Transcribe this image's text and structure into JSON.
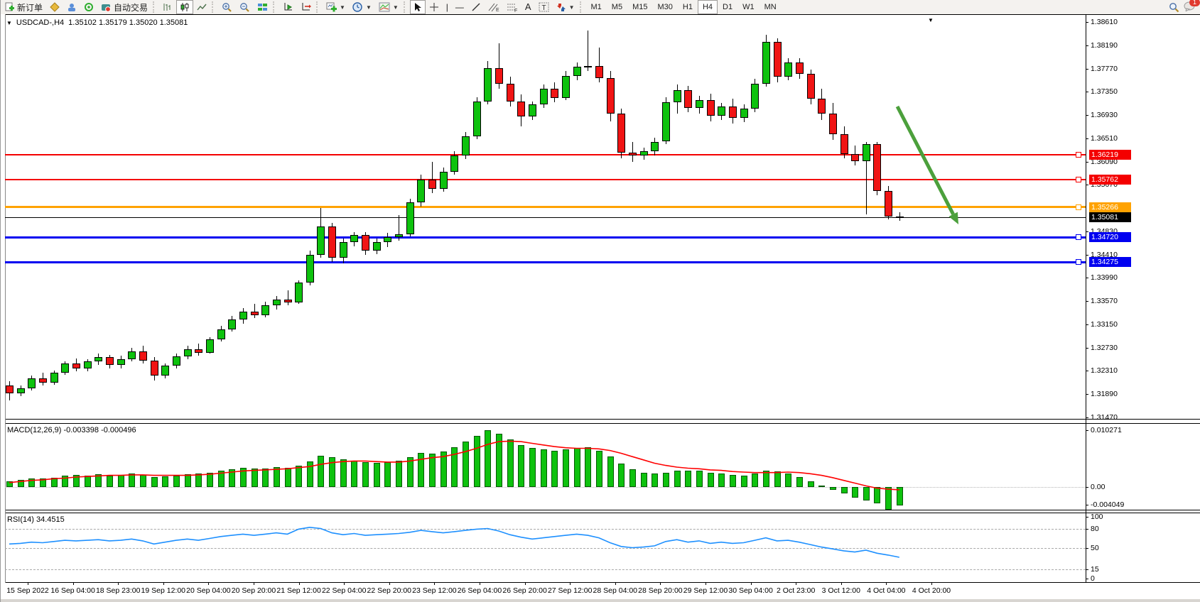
{
  "toolbar": {
    "new_order": "新订单",
    "auto_trading": "自动交易",
    "timeframes": [
      "M1",
      "M5",
      "M15",
      "M30",
      "H1",
      "H4",
      "D1",
      "W1",
      "MN"
    ],
    "active_timeframe": "H4",
    "notification_badge": "1"
  },
  "chart": {
    "title_symbol": "USDCAD-,H4",
    "title_ohlc": "1.35102 1.35179 1.35020 1.35081"
  },
  "chart_data": {
    "type": "candlestick",
    "symbol": "USDCAD",
    "timeframe": "H4",
    "open": 1.35102,
    "high": 1.35179,
    "low": 1.3502,
    "close": 1.35081,
    "price_axis_ticks": [
      "1.38610",
      "1.38190",
      "1.37770",
      "1.37350",
      "1.36930",
      "1.36510",
      "1.36090",
      "1.35670",
      "1.34830",
      "1.34410",
      "1.33990",
      "1.33570",
      "1.33150",
      "1.32730",
      "1.32310",
      "1.31890",
      "1.31470"
    ],
    "current_price": 1.35081,
    "current_price_color": "#000000",
    "levels": [
      {
        "price": 1.36219,
        "color": "#f40000",
        "thickness": 2
      },
      {
        "price": 1.35762,
        "color": "#f40000",
        "thickness": 2
      },
      {
        "price": 1.35266,
        "color": "#ffa200",
        "thickness": 3
      },
      {
        "price": 1.3472,
        "color": "#0000f0",
        "thickness": 3
      },
      {
        "price": 1.34275,
        "color": "#0000f0",
        "thickness": 3
      }
    ],
    "bull_color": "#0ec20e",
    "bear_color": "#f01414",
    "x_labels": [
      "15 Sep 2022",
      "16 Sep 04:00",
      "18 Sep 23:00",
      "19 Sep 12:00",
      "20 Sep 04:00",
      "20 Sep 20:00",
      "21 Sep 12:00",
      "22 Sep 04:00",
      "22 Sep 20:00",
      "23 Sep 12:00",
      "26 Sep 04:00",
      "26 Sep 20:00",
      "27 Sep 12:00",
      "28 Sep 04:00",
      "28 Sep 20:00",
      "29 Sep 12:00",
      "30 Sep 04:00",
      "2 Oct 23:00",
      "3 Oct 12:00",
      "4 Oct 04:00",
      "4 Oct 20:00"
    ],
    "candles": [
      [
        1.3205,
        1.3212,
        1.3178,
        1.319
      ],
      [
        1.319,
        1.3205,
        1.3185,
        1.32
      ],
      [
        1.32,
        1.3222,
        1.3196,
        1.3218
      ],
      [
        1.3218,
        1.3228,
        1.3205,
        1.321
      ],
      [
        1.321,
        1.3232,
        1.3206,
        1.3228
      ],
      [
        1.3228,
        1.3248,
        1.3224,
        1.3244
      ],
      [
        1.3244,
        1.3254,
        1.323,
        1.3236
      ],
      [
        1.3236,
        1.3252,
        1.323,
        1.3248
      ],
      [
        1.3248,
        1.3262,
        1.3242,
        1.3256
      ],
      [
        1.3256,
        1.326,
        1.3236,
        1.3242
      ],
      [
        1.3242,
        1.3258,
        1.3236,
        1.3252
      ],
      [
        1.3252,
        1.3272,
        1.3248,
        1.3266
      ],
      [
        1.3266,
        1.3276,
        1.3244,
        1.325
      ],
      [
        1.325,
        1.3256,
        1.3214,
        1.3222
      ],
      [
        1.3222,
        1.3244,
        1.3218,
        1.324
      ],
      [
        1.324,
        1.3262,
        1.3236,
        1.3257
      ],
      [
        1.3257,
        1.3276,
        1.3252,
        1.327
      ],
      [
        1.327,
        1.328,
        1.3258,
        1.3264
      ],
      [
        1.3264,
        1.3292,
        1.3262,
        1.3288
      ],
      [
        1.3288,
        1.3312,
        1.3284,
        1.3306
      ],
      [
        1.3306,
        1.333,
        1.3302,
        1.3324
      ],
      [
        1.3324,
        1.3344,
        1.3316,
        1.3338
      ],
      [
        1.3338,
        1.3352,
        1.3326,
        1.3332
      ],
      [
        1.3332,
        1.3356,
        1.3328,
        1.335
      ],
      [
        1.335,
        1.3366,
        1.3342,
        1.336
      ],
      [
        1.336,
        1.3376,
        1.335,
        1.3355
      ],
      [
        1.3355,
        1.3395,
        1.3352,
        1.339
      ],
      [
        1.339,
        1.3448,
        1.3385,
        1.344
      ],
      [
        1.344,
        1.3525,
        1.3436,
        1.3492
      ],
      [
        1.3492,
        1.3498,
        1.3428,
        1.3436
      ],
      [
        1.3436,
        1.347,
        1.3425,
        1.3464
      ],
      [
        1.3464,
        1.3482,
        1.3456,
        1.3476
      ],
      [
        1.3476,
        1.3482,
        1.344,
        1.3448
      ],
      [
        1.3448,
        1.347,
        1.3442,
        1.3463
      ],
      [
        1.3463,
        1.348,
        1.3454,
        1.3472
      ],
      [
        1.3472,
        1.3512,
        1.3466,
        1.3478
      ],
      [
        1.3478,
        1.3542,
        1.3474,
        1.3535
      ],
      [
        1.3535,
        1.3585,
        1.3528,
        1.3576
      ],
      [
        1.3576,
        1.3608,
        1.3552,
        1.356
      ],
      [
        1.356,
        1.3598,
        1.3554,
        1.359
      ],
      [
        1.359,
        1.3628,
        1.3585,
        1.362
      ],
      [
        1.362,
        1.3662,
        1.3614,
        1.3655
      ],
      [
        1.3655,
        1.3725,
        1.365,
        1.3718
      ],
      [
        1.3718,
        1.379,
        1.3712,
        1.3778
      ],
      [
        1.3778,
        1.3822,
        1.374,
        1.375
      ],
      [
        1.375,
        1.3762,
        1.3708,
        1.3718
      ],
      [
        1.3718,
        1.373,
        1.3672,
        1.369
      ],
      [
        1.369,
        1.3718,
        1.3684,
        1.3712
      ],
      [
        1.3712,
        1.3748,
        1.3706,
        1.374
      ],
      [
        1.374,
        1.3752,
        1.3716,
        1.3724
      ],
      [
        1.3724,
        1.3772,
        1.372,
        1.3764
      ],
      [
        1.3764,
        1.3788,
        1.3756,
        1.378
      ],
      [
        1.378,
        1.3845,
        1.3772,
        1.3782
      ],
      [
        1.3782,
        1.3815,
        1.3752,
        1.376
      ],
      [
        1.376,
        1.3772,
        1.3682,
        1.3695
      ],
      [
        1.3695,
        1.3705,
        1.3615,
        1.3625
      ],
      [
        1.3625,
        1.3645,
        1.3608,
        1.362
      ],
      [
        1.362,
        1.3634,
        1.3612,
        1.3628
      ],
      [
        1.3628,
        1.3652,
        1.362,
        1.3645
      ],
      [
        1.3645,
        1.3725,
        1.364,
        1.3716
      ],
      [
        1.3716,
        1.3748,
        1.3695,
        1.3738
      ],
      [
        1.3738,
        1.3745,
        1.3698,
        1.3706
      ],
      [
        1.3706,
        1.3728,
        1.3695,
        1.372
      ],
      [
        1.372,
        1.3732,
        1.3682,
        1.3692
      ],
      [
        1.3692,
        1.3715,
        1.3684,
        1.3708
      ],
      [
        1.3708,
        1.3722,
        1.3678,
        1.3688
      ],
      [
        1.3688,
        1.3712,
        1.368,
        1.3704
      ],
      [
        1.3704,
        1.3758,
        1.3698,
        1.375
      ],
      [
        1.375,
        1.3838,
        1.3744,
        1.3825
      ],
      [
        1.3825,
        1.3832,
        1.3752,
        1.3762
      ],
      [
        1.3762,
        1.3795,
        1.3756,
        1.3788
      ],
      [
        1.3788,
        1.3795,
        1.3758,
        1.3768
      ],
      [
        1.3768,
        1.3775,
        1.3712,
        1.3722
      ],
      [
        1.3722,
        1.374,
        1.3684,
        1.3695
      ],
      [
        1.3695,
        1.3715,
        1.3648,
        1.3658
      ],
      [
        1.3658,
        1.3672,
        1.3615,
        1.3622
      ],
      [
        1.3622,
        1.3638,
        1.3602,
        1.361
      ],
      [
        1.361,
        1.3645,
        1.3513,
        1.364
      ],
      [
        1.364,
        1.3645,
        1.3548,
        1.3556
      ],
      [
        1.3556,
        1.3565,
        1.3505,
        1.351
      ],
      [
        1.35102,
        1.35179,
        1.3502,
        1.35081
      ]
    ],
    "indicators": {
      "macd": {
        "label": "MACD(12,26,9) -0.003398 -0.000496",
        "params": "12,26,9",
        "macd_value": -0.003398,
        "signal_value": -0.000496,
        "axis": [
          "0.010271",
          "0.00",
          "-0.004049"
        ],
        "histogram_color": "#0ec20e",
        "signal_color": "#ff0000",
        "histogram": [
          0.001,
          0.0013,
          0.0016,
          0.0015,
          0.0017,
          0.002,
          0.0022,
          0.0021,
          0.0023,
          0.0021,
          0.0022,
          0.0024,
          0.0022,
          0.0018,
          0.0019,
          0.0021,
          0.0023,
          0.0024,
          0.0026,
          0.0029,
          0.0032,
          0.0035,
          0.0033,
          0.0034,
          0.0036,
          0.0035,
          0.0038,
          0.0046,
          0.0056,
          0.0054,
          0.005,
          0.0048,
          0.0045,
          0.0044,
          0.0045,
          0.0047,
          0.0054,
          0.0062,
          0.006,
          0.0064,
          0.0072,
          0.0082,
          0.0092,
          0.0103,
          0.0096,
          0.0086,
          0.0076,
          0.007,
          0.0068,
          0.0066,
          0.0068,
          0.007,
          0.0072,
          0.0066,
          0.0055,
          0.0042,
          0.0032,
          0.0026,
          0.0024,
          0.0026,
          0.003,
          0.003,
          0.0029,
          0.0026,
          0.0024,
          0.0022,
          0.0021,
          0.0024,
          0.003,
          0.0028,
          0.0024,
          0.0018,
          0.001,
          0.0002,
          -0.0005,
          -0.0012,
          -0.0019,
          -0.0024,
          -0.003,
          -0.004049,
          -0.003398
        ],
        "signal": [
          0.0008,
          0.001,
          0.0012,
          0.0013,
          0.0015,
          0.0016,
          0.0018,
          0.0019,
          0.002,
          0.0021,
          0.0021,
          0.0022,
          0.0022,
          0.0021,
          0.0021,
          0.0021,
          0.0021,
          0.0022,
          0.0023,
          0.0025,
          0.0027,
          0.0029,
          0.003,
          0.0031,
          0.0032,
          0.0033,
          0.0035,
          0.0037,
          0.0041,
          0.0044,
          0.0046,
          0.0047,
          0.0047,
          0.0046,
          0.0045,
          0.0045,
          0.0047,
          0.005,
          0.0053,
          0.0055,
          0.0059,
          0.0064,
          0.007,
          0.0077,
          0.0082,
          0.0083,
          0.0082,
          0.0079,
          0.0076,
          0.0073,
          0.0071,
          0.007,
          0.007,
          0.0069,
          0.0066,
          0.0061,
          0.0055,
          0.0049,
          0.0043,
          0.0039,
          0.0036,
          0.0034,
          0.0033,
          0.0031,
          0.003,
          0.0028,
          0.0027,
          0.0026,
          0.0026,
          0.0026,
          0.0027,
          0.0026,
          0.0024,
          0.0021,
          0.0017,
          0.0012,
          0.0007,
          0.0002,
          -0.0002,
          -0.0004,
          -0.000496
        ]
      },
      "rsi": {
        "label": "RSI(14) 34.4515",
        "period": 14,
        "value": 34.4515,
        "line_color": "#1e90ff",
        "axis": [
          "100",
          "80",
          "50",
          "15",
          "0"
        ],
        "levels": [
          80,
          50,
          15
        ],
        "values": [
          56,
          57,
          59,
          58,
          60,
          62,
          61,
          62,
          63,
          61,
          62,
          64,
          61,
          56,
          59,
          62,
          64,
          62,
          65,
          68,
          70,
          72,
          70,
          72,
          74,
          72,
          80,
          83,
          81,
          74,
          71,
          73,
          70,
          71,
          72,
          73,
          75,
          78,
          76,
          74,
          76,
          78,
          80,
          81,
          77,
          71,
          67,
          64,
          66,
          68,
          70,
          72,
          70,
          66,
          58,
          52,
          50,
          51,
          53,
          60,
          63,
          59,
          61,
          57,
          59,
          57,
          58,
          62,
          66,
          61,
          62,
          59,
          55,
          51,
          48,
          45,
          43,
          46,
          41,
          38,
          34.4515
        ]
      }
    },
    "annotations": [
      {
        "type": "arrow",
        "color": "#4ca03c",
        "from": [
          1262,
          150
        ],
        "to": [
          1348,
          316
        ]
      }
    ]
  }
}
